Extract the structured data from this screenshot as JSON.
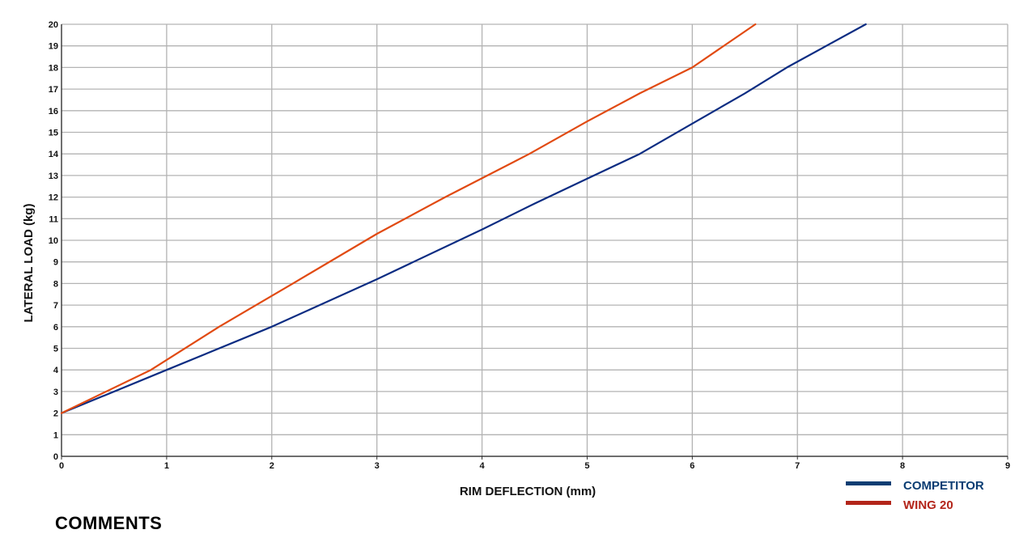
{
  "chart_data": {
    "type": "line",
    "title": "",
    "xlabel": "RIM DEFLECTION (mm)",
    "ylabel": "LATERAL LOAD (kg)",
    "xlim": [
      0,
      9
    ],
    "ylim": [
      0,
      20
    ],
    "x_ticks": [
      0,
      1,
      2,
      3,
      4,
      5,
      6,
      7,
      8,
      9
    ],
    "y_ticks": [
      0,
      1,
      2,
      3,
      4,
      5,
      6,
      7,
      8,
      9,
      10,
      11,
      12,
      13,
      14,
      15,
      16,
      17,
      18,
      19,
      20
    ],
    "grid": true,
    "legend_position": "bottom-right",
    "series": [
      {
        "name": "COMPETITOR",
        "color": "#0b2c82",
        "legend_color": "#0b3d73",
        "legend_text_color": "#0b3d73",
        "points": [
          [
            0,
            2
          ],
          [
            1,
            4
          ],
          [
            2,
            6
          ],
          [
            3,
            8.2
          ],
          [
            4,
            10.5
          ],
          [
            4.5,
            11.7
          ],
          [
            5,
            12.85
          ],
          [
            5.5,
            14
          ],
          [
            6,
            15.4
          ],
          [
            6.5,
            16.8
          ],
          [
            6.9,
            18
          ],
          [
            7.65,
            20
          ]
        ]
      },
      {
        "name": "WING 20",
        "color": "#e14a12",
        "legend_color": "#b3251a",
        "legend_text_color": "#b3251a",
        "points": [
          [
            0,
            2
          ],
          [
            0.85,
            4
          ],
          [
            1.5,
            6
          ],
          [
            2.2,
            8
          ],
          [
            3,
            10.3
          ],
          [
            3.65,
            12
          ],
          [
            4.45,
            14
          ],
          [
            5,
            15.5
          ],
          [
            5.5,
            16.8
          ],
          [
            6,
            18
          ],
          [
            6.6,
            20
          ]
        ]
      }
    ]
  },
  "footer": {
    "comments_label": "COMMENTS"
  }
}
